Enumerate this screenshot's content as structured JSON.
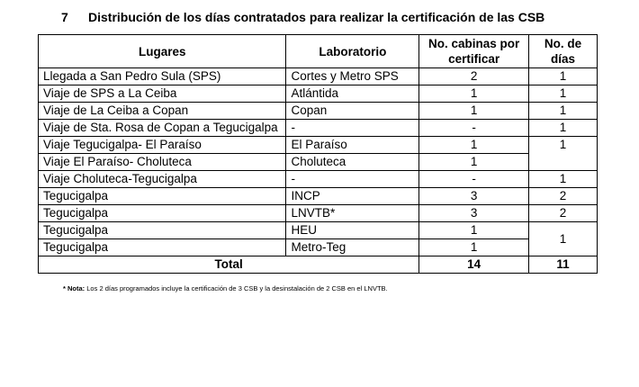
{
  "header": {
    "number": "7",
    "title": "Distribución de los días contratados para realizar la certificación de las CSB"
  },
  "table": {
    "columns": [
      "Lugares",
      "Laboratorio",
      "No. cabinas por certificar",
      "No. de días"
    ],
    "rows": [
      {
        "lugar": "Llegada a San Pedro Sula (SPS)",
        "laboratorio": "Cortes y Metro SPS",
        "cabinas": "2",
        "dias": "1"
      },
      {
        "lugar": "Viaje de SPS a La Ceiba",
        "laboratorio": "Atlántida",
        "cabinas": "1",
        "dias": "1"
      },
      {
        "lugar": "Viaje de La Ceiba a Copan",
        "laboratorio": "Copan",
        "cabinas": "1",
        "dias": "1"
      },
      {
        "lugar": "Viaje de Sta. Rosa de Copan a Tegucigalpa",
        "laboratorio": "-",
        "cabinas": "-",
        "dias": "1"
      },
      {
        "lugar": "Viaje Tegucigalpa- El Paraíso",
        "laboratorio": "El Paraíso",
        "cabinas": "1",
        "dias": "1"
      },
      {
        "lugar": "Viaje El Paraíso- Choluteca",
        "laboratorio": "Choluteca",
        "cabinas": "1"
      },
      {
        "lugar": "Viaje Choluteca-Tegucigalpa",
        "laboratorio": "-",
        "cabinas": "-",
        "dias": "1"
      },
      {
        "lugar": "Tegucigalpa",
        "laboratorio": "INCP",
        "cabinas": "3",
        "dias": "2"
      },
      {
        "lugar": "Tegucigalpa",
        "laboratorio": "LNVTB*",
        "cabinas": "3",
        "dias": "2"
      },
      {
        "lugar": "Tegucigalpa",
        "laboratorio": "HEU",
        "cabinas": "1",
        "dias": "1"
      },
      {
        "lugar": "Tegucigalpa",
        "laboratorio": "Metro-Teg",
        "cabinas": "1"
      }
    ],
    "total": {
      "label": "Total",
      "cabinas": "14",
      "dias": "11"
    }
  },
  "note": {
    "marker": "* Nota:",
    "text": "Los 2 días programados incluye la certificación de 3 CSB y la desinstalación de 2 CSB en el LNVTB."
  }
}
